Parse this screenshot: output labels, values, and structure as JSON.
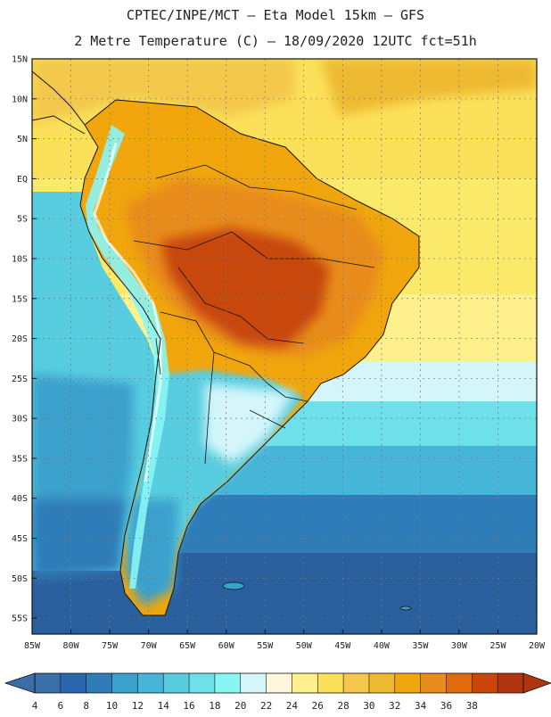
{
  "header": {
    "line1": "CPTEC/INPE/MCT –  Eta Model 15km – GFS",
    "line2": "2 Metre Temperature (C) – 18/09/2020 12UTC fct=51h"
  },
  "map": {
    "lat_labels": [
      "15N",
      "10N",
      "5N",
      "EQ",
      "5S",
      "10S",
      "15S",
      "20S",
      "25S",
      "30S",
      "35S",
      "40S",
      "45S",
      "50S",
      "55S"
    ],
    "lon_labels": [
      "85W",
      "80W",
      "75W",
      "70W",
      "65W",
      "60W",
      "55W",
      "50W",
      "45W",
      "40W",
      "35W",
      "30W",
      "25W",
      "20W"
    ],
    "lat_range": [
      15,
      -57
    ],
    "lon_range": [
      -85,
      -20
    ]
  },
  "legend": {
    "ticks": [
      "4",
      "6",
      "8",
      "10",
      "12",
      "14",
      "16",
      "18",
      "20",
      "22",
      "24",
      "26",
      "28",
      "30",
      "32",
      "34",
      "36",
      "38"
    ],
    "colors": [
      "#3a6ea8",
      "#2a66ae",
      "#2e7cb8",
      "#3aa0cc",
      "#47b5d8",
      "#58cde0",
      "#6de0ea",
      "#8af5f5",
      "#d4f6fb",
      "#fff7dc",
      "#fdf08d",
      "#fbe05a",
      "#f3c84b",
      "#eeba33",
      "#f0a60c",
      "#e88c1d",
      "#e06b0c",
      "#c8460a",
      "#b0350f"
    ]
  }
}
